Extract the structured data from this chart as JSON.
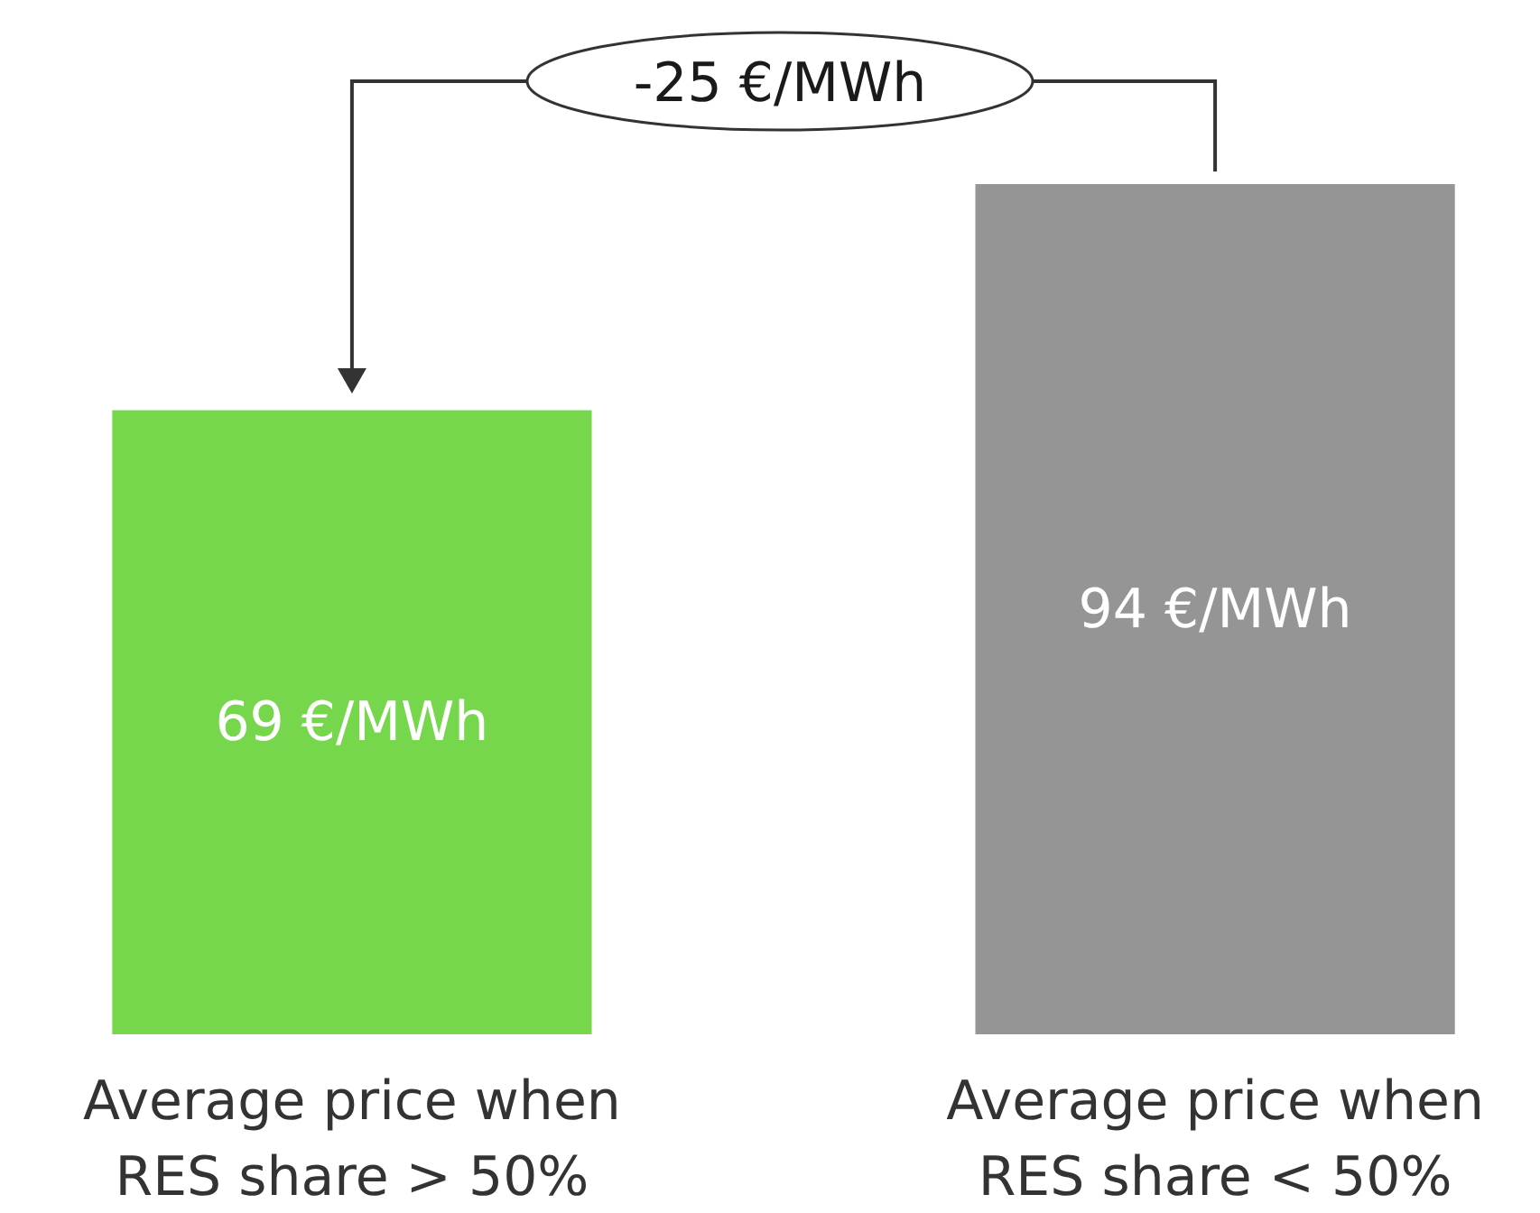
{
  "chart_data": {
    "type": "bar",
    "categories": [
      "Average price when RES share > 50%",
      "Average price when RES share < 50%"
    ],
    "values": [
      69,
      94
    ],
    "colors": [
      "#76d74c",
      "#959595"
    ],
    "value_labels": [
      "69 €/MWh",
      "94 €/MWh"
    ],
    "annotations": [
      "-25 €/MWh"
    ]
  }
}
